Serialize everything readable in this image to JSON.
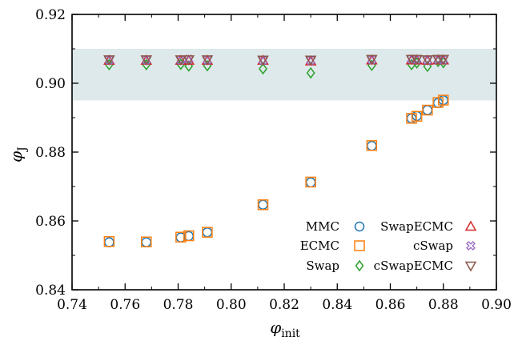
{
  "chart_data": {
    "type": "scatter",
    "xlabel": "φ",
    "xlabel_sub": "init",
    "ylabel": "φ",
    "ylabel_sub": "J",
    "xlim": [
      0.74,
      0.9
    ],
    "ylim": [
      0.84,
      0.92
    ],
    "xticks": [
      "0.74",
      "0.76",
      "0.78",
      "0.80",
      "0.82",
      "0.84",
      "0.86",
      "0.88",
      "0.90"
    ],
    "yticks": [
      "0.84",
      "0.86",
      "0.88",
      "0.90",
      "0.92"
    ],
    "band": [
      0.895,
      0.91
    ],
    "band_color": "#dde9ea",
    "x": [
      0.754,
      0.768,
      0.781,
      0.784,
      0.791,
      0.812,
      0.83,
      0.853,
      0.868,
      0.87,
      0.874,
      0.878,
      0.88
    ],
    "series": [
      {
        "name": "MMC",
        "marker": "circle",
        "color": "#1f77b4",
        "values": [
          0.8538,
          0.8538,
          0.8552,
          0.8556,
          0.8567,
          0.8647,
          0.8712,
          0.8818,
          0.8898,
          0.8905,
          0.8922,
          0.8943,
          0.8951
        ]
      },
      {
        "name": "ECMC",
        "marker": "square",
        "color": "#ff7f0e",
        "values": [
          0.854,
          0.8539,
          0.8553,
          0.8557,
          0.8567,
          0.8647,
          0.8713,
          0.8819,
          0.8898,
          0.8904,
          0.8922,
          0.8944,
          0.8951
        ]
      },
      {
        "name": "Swap",
        "marker": "diamond",
        "color": "#2ca02c",
        "values": [
          0.9054,
          0.9054,
          0.9055,
          0.905,
          0.9051,
          0.9042,
          0.903,
          0.9052,
          0.9054,
          0.9059,
          0.9049,
          0.9063,
          0.906
        ]
      },
      {
        "name": "SwapECMC",
        "marker": "triangle-up",
        "color": "#d62728",
        "values": [
          0.9066,
          0.9066,
          0.9066,
          0.9066,
          0.9066,
          0.9066,
          0.9064,
          0.9067,
          0.9067,
          0.9067,
          0.9066,
          0.9067,
          0.9067
        ]
      },
      {
        "name": "cSwap",
        "marker": "x",
        "color": "#9467bd",
        "values": [
          0.9067,
          0.9067,
          0.9067,
          0.907,
          0.9067,
          0.9066,
          0.9066,
          0.9068,
          0.907,
          0.9069,
          0.9067,
          0.9068,
          0.9068
        ]
      },
      {
        "name": "cSwapECMC",
        "marker": "triangle-down",
        "color": "#8c564b",
        "values": [
          0.9069,
          0.9069,
          0.9069,
          0.9069,
          0.9069,
          0.9068,
          0.9068,
          0.907,
          0.907,
          0.907,
          0.9069,
          0.907,
          0.907
        ]
      }
    ],
    "legend_position": "bottom-right",
    "grid": false
  }
}
